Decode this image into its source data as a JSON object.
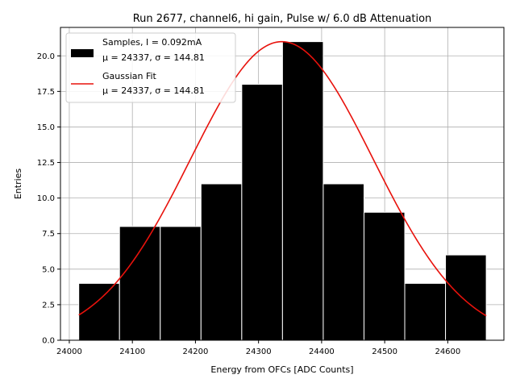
{
  "chart_data": {
    "type": "bar",
    "title": "Run 2677, channel6, hi gain, Pulse w/ 6.0 dB Attenuation",
    "xlabel": "Energy from OFCs [ADC Counts]",
    "ylabel": "Entries",
    "xlim": [
      23986,
      24689
    ],
    "ylim": [
      0,
      22
    ],
    "xticks": [
      24000,
      24100,
      24200,
      24300,
      24400,
      24500,
      24600
    ],
    "yticks": [
      0.0,
      2.5,
      5.0,
      7.5,
      10.0,
      12.5,
      15.0,
      17.5,
      20.0
    ],
    "grid": true,
    "legend_position": "top-left",
    "bin_edges": [
      24015,
      24079.6,
      24144.2,
      24208.8,
      24273.4,
      24338,
      24402.6,
      24467.2,
      24531.8,
      24596.4,
      24661
    ],
    "values": [
      4,
      8,
      8,
      11,
      18,
      21,
      11,
      9,
      4,
      6
    ],
    "bar_color": "#000000",
    "fit": {
      "mu": 24337,
      "sigma": 144.81,
      "amplitude": 21,
      "x_range": [
        24015,
        24661
      ],
      "color": "#e8120c"
    },
    "legend": [
      {
        "label_line1": "Samples, I = 0.092mA",
        "label_line2": "μ = 24337, σ = 144.81"
      },
      {
        "label_line1": "Gaussian Fit",
        "label_line2": "μ = 24337, σ = 144.81"
      }
    ]
  }
}
